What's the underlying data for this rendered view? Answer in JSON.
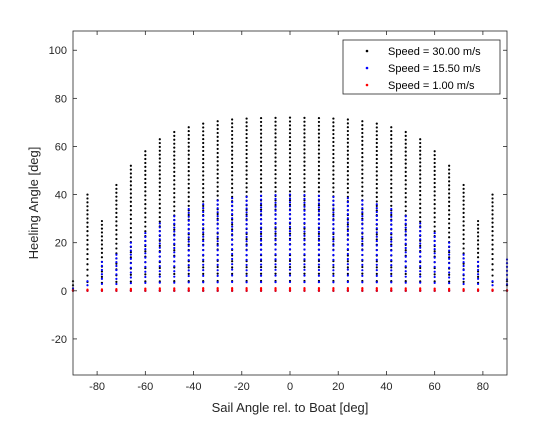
{
  "chart_data": {
    "type": "scatter",
    "title": "",
    "xlabel": "Sail Angle rel. to Boat [deg]",
    "ylabel": "Heeling Angle [deg]",
    "xlim": [
      -90,
      90
    ],
    "ylim": [
      -35,
      108
    ],
    "x_ticks": [
      -80,
      -60,
      -40,
      -20,
      0,
      20,
      40,
      60,
      80
    ],
    "y_ticks": [
      -20,
      0,
      20,
      40,
      60,
      80,
      100
    ],
    "x_tick_labels": [
      "-80",
      "-60",
      "-40",
      "-20",
      "0",
      "20",
      "40",
      "60",
      "80"
    ],
    "y_tick_labels": [
      "-20",
      "0",
      "20",
      "40",
      "60",
      "80",
      "100"
    ],
    "grid": false,
    "legend_position": "top-right",
    "sail_angles": [
      -90,
      -84,
      -78,
      -72,
      -66,
      -60,
      -54,
      -48,
      -42,
      -36,
      -30,
      -24,
      -18,
      -12,
      -6,
      0,
      6,
      12,
      18,
      24,
      30,
      36,
      42,
      48,
      54,
      60,
      66,
      72,
      78,
      84,
      90
    ],
    "series": [
      {
        "name": "Speed = 30.00 m/s",
        "color": "#000000",
        "max_heel": [
          4,
          40,
          29,
          44,
          52,
          58,
          63,
          66,
          68,
          69.5,
          70.5,
          71.2,
          71.6,
          71.8,
          71.9,
          72,
          71.9,
          71.8,
          71.6,
          71.2,
          70.5,
          69.5,
          68,
          66,
          63,
          58,
          52,
          44,
          29,
          40,
          4
        ]
      },
      {
        "name": "Speed = 15.50 m/s",
        "color": "#0000ff",
        "max_heel": [
          1,
          4,
          12,
          15,
          20,
          24,
          28,
          31,
          34,
          36,
          37.5,
          38.5,
          39,
          39.5,
          39.8,
          40,
          39.8,
          39.5,
          39,
          38.5,
          37.5,
          36,
          34,
          31,
          28,
          24,
          20,
          15,
          12,
          4,
          13
        ]
      },
      {
        "name": "Speed = 1.00 m/s",
        "color": "#ff0000",
        "max_heel": [
          0.3,
          0.5,
          0.6,
          0.7,
          0.8,
          0.9,
          1,
          1,
          1,
          1.1,
          1.1,
          1.1,
          1.1,
          1.1,
          1.1,
          1.1,
          1.1,
          1.1,
          1.1,
          1.1,
          1.1,
          1.1,
          1,
          1,
          1,
          0.9,
          0.8,
          0.7,
          0.6,
          0.5,
          0.3
        ]
      }
    ]
  }
}
